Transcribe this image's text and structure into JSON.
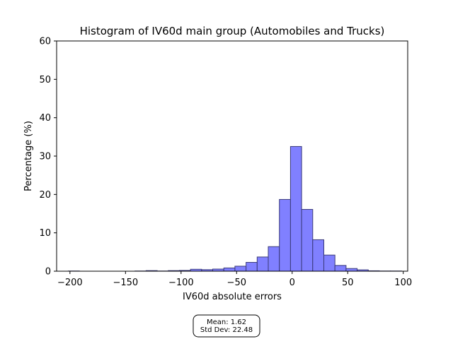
{
  "chart_data": {
    "type": "bar",
    "title": "Histogram of IV60d main group (Automobiles and Trucks)",
    "xlabel": "IV60d absolute errors",
    "ylabel": "Percentage (%)",
    "xlim": [
      -212,
      104
    ],
    "ylim": [
      0,
      60
    ],
    "xticks": [
      -200,
      -150,
      -100,
      -50,
      0,
      50,
      100
    ],
    "yticks": [
      0,
      10,
      20,
      30,
      40,
      50,
      60
    ],
    "grid": false,
    "bar_color": "#8080ff",
    "bar_edge_color": "#3a3a7a",
    "bins": [
      {
        "start": -201.5,
        "end": -191.5,
        "value": 0.05
      },
      {
        "start": -191.5,
        "end": -181.5,
        "value": 0.0
      },
      {
        "start": -181.5,
        "end": -171.5,
        "value": 0.0
      },
      {
        "start": -171.5,
        "end": -161.5,
        "value": 0.0
      },
      {
        "start": -161.5,
        "end": -151.5,
        "value": 0.0
      },
      {
        "start": -151.5,
        "end": -141.5,
        "value": 0.0
      },
      {
        "start": -141.5,
        "end": -131.5,
        "value": 0.05
      },
      {
        "start": -131.5,
        "end": -121.5,
        "value": 0.15
      },
      {
        "start": -121.5,
        "end": -111.5,
        "value": 0.05
      },
      {
        "start": -111.5,
        "end": -101.5,
        "value": 0.15
      },
      {
        "start": -101.5,
        "end": -91.5,
        "value": 0.2
      },
      {
        "start": -91.5,
        "end": -81.5,
        "value": 0.5
      },
      {
        "start": -81.5,
        "end": -71.5,
        "value": 0.4
      },
      {
        "start": -71.5,
        "end": -61.5,
        "value": 0.55
      },
      {
        "start": -61.5,
        "end": -51.5,
        "value": 0.85
      },
      {
        "start": -51.5,
        "end": -41.5,
        "value": 1.3
      },
      {
        "start": -41.5,
        "end": -31.5,
        "value": 2.3
      },
      {
        "start": -31.5,
        "end": -21.5,
        "value": 3.7
      },
      {
        "start": -21.5,
        "end": -11.5,
        "value": 6.4
      },
      {
        "start": -11.5,
        "end": -1.5,
        "value": 18.7
      },
      {
        "start": -1.5,
        "end": 8.5,
        "value": 32.5
      },
      {
        "start": 8.5,
        "end": 18.5,
        "value": 16.1
      },
      {
        "start": 18.5,
        "end": 28.5,
        "value": 8.2
      },
      {
        "start": 28.5,
        "end": 38.5,
        "value": 4.2
      },
      {
        "start": 38.5,
        "end": 48.5,
        "value": 1.5
      },
      {
        "start": 48.5,
        "end": 58.5,
        "value": 0.7
      },
      {
        "start": 58.5,
        "end": 68.5,
        "value": 0.35
      },
      {
        "start": 68.5,
        "end": 78.5,
        "value": 0.1
      },
      {
        "start": 78.5,
        "end": 88.5,
        "value": 0.05
      },
      {
        "start": 88.5,
        "end": 98.5,
        "value": 0.05
      }
    ]
  },
  "stats_box": {
    "mean_label": "Mean: 1.62",
    "std_label": "Std Dev: 22.48"
  }
}
